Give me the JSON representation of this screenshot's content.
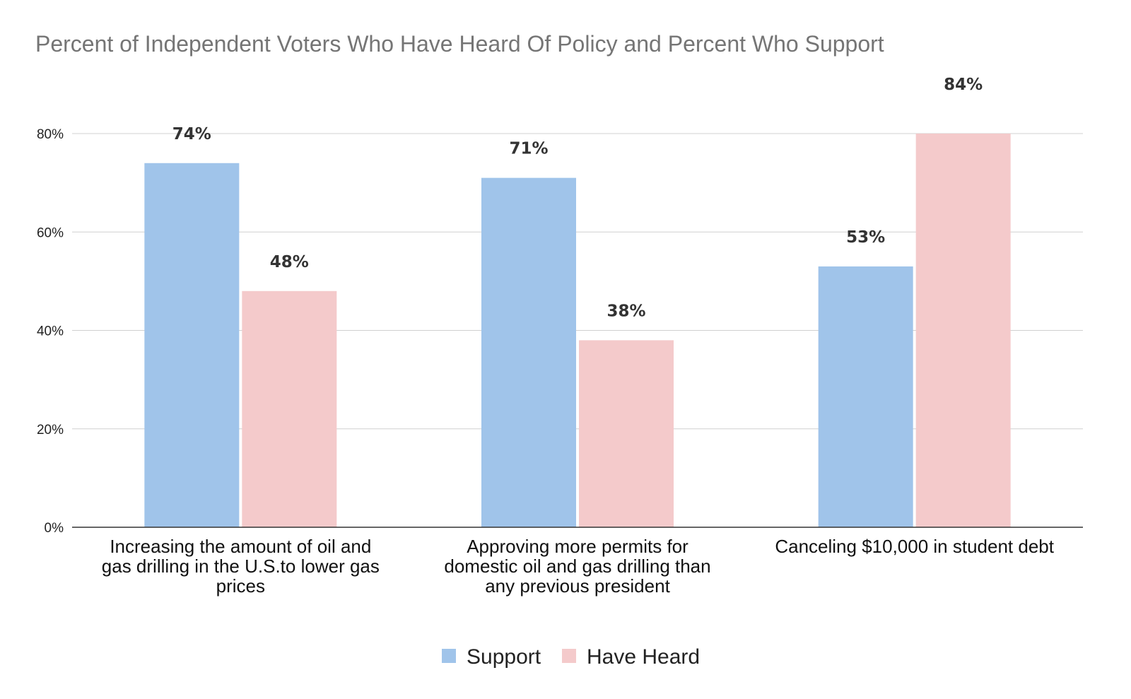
{
  "chart_data": {
    "type": "bar",
    "title": "Percent of Independent Voters Who Have Heard Of Policy and Percent Who Support",
    "categories": [
      [
        "Increasing the amount of oil and",
        "gas drilling in the U.S.to lower gas",
        "prices"
      ],
      [
        "Approving more permits for",
        "domestic oil and gas drilling than",
        "any previous president"
      ],
      [
        "Canceling $10,000 in student debt"
      ]
    ],
    "series": [
      {
        "name": "Support",
        "color": "#a0c4ea",
        "values": [
          74,
          71,
          53
        ],
        "labels": [
          "74%",
          "71%",
          "53%"
        ]
      },
      {
        "name": "Have Heard",
        "color": "#f4cacb",
        "values": [
          48,
          38,
          84
        ],
        "labels": [
          "48%",
          "38%",
          "84%"
        ]
      }
    ],
    "ylim": [
      0,
      80
    ],
    "yticks": [
      0,
      20,
      40,
      60,
      80
    ],
    "ytick_labels": [
      "0%",
      "20%",
      "40%",
      "60%",
      "80%"
    ],
    "grid": true,
    "legend_position": "bottom-center",
    "xlabel": "",
    "ylabel": ""
  }
}
